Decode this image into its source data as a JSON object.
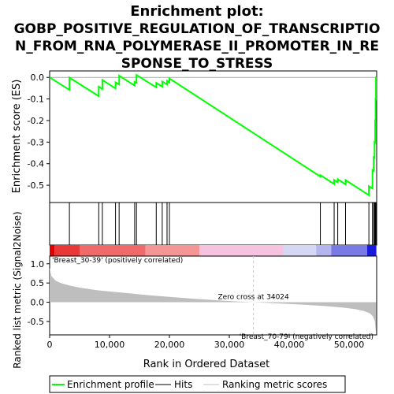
{
  "chart_data": {
    "type": "line",
    "title_lines": [
      "Enrichment plot:",
      "GOBP_POSITIVE_REGULATION_OF_TRANSCRIPTIO",
      "N_FROM_RNA_POLYMERASE_II_PROMOTER_IN_RE",
      "SPONSE_TO_STRESS"
    ],
    "es_ylabel": "Enrichment score (ES)",
    "rank_ylabel": "Ranked list metric (Signal2Noise)",
    "xlabel": "Rank in Ordered Dataset",
    "xlim": [
      0,
      54600
    ],
    "es_ylim": [
      -0.58,
      0.03
    ],
    "rank_ylim": [
      -0.85,
      1.2
    ],
    "x_ticks": [
      0,
      10000,
      20000,
      30000,
      40000,
      50000
    ],
    "x_tick_labels": [
      "0",
      "10,000",
      "20,000",
      "30,000",
      "40,000",
      "50,000"
    ],
    "es_ticks": [
      0.0,
      -0.1,
      -0.2,
      -0.3,
      -0.4,
      -0.5
    ],
    "es_tick_labels": [
      "0.0",
      "-0.1",
      "-0.2",
      "-0.3",
      "-0.4",
      "-0.5"
    ],
    "rank_ticks": [
      1.0,
      0.5,
      0.0,
      -0.5
    ],
    "rank_tick_labels": [
      "1.0",
      "0.5",
      "0.0",
      "-0.5"
    ],
    "hits": [
      3300,
      8200,
      8800,
      11000,
      11600,
      14200,
      14500,
      17800,
      18800,
      19600,
      20000,
      45200,
      47500,
      48100,
      49400,
      53300,
      53900,
      54100,
      54250,
      54350,
      54420,
      54480
    ],
    "es_series": {
      "name": "Enrichment profile",
      "x": [
        0,
        3300,
        3300,
        8200,
        8200,
        8800,
        8800,
        11000,
        11000,
        11600,
        11600,
        14200,
        14200,
        14500,
        14500,
        17800,
        17800,
        18800,
        18800,
        19600,
        19600,
        20000,
        20000,
        45200,
        45200,
        47500,
        47500,
        48100,
        48100,
        49400,
        49400,
        53300,
        53300,
        53900,
        53900,
        54100,
        54100,
        54250,
        54250,
        54350,
        54350,
        54420,
        54420,
        54480,
        54480,
        54550
      ],
      "y": [
        0.0,
        -0.058,
        -0.001,
        -0.087,
        -0.043,
        -0.054,
        -0.012,
        -0.051,
        -0.023,
        -0.033,
        0.008,
        -0.038,
        -0.021,
        -0.026,
        0.011,
        -0.046,
        -0.025,
        -0.043,
        -0.019,
        -0.033,
        -0.016,
        -0.023,
        -0.005,
        -0.46,
        -0.453,
        -0.494,
        -0.475,
        -0.486,
        -0.472,
        -0.496,
        -0.476,
        -0.546,
        -0.504,
        -0.515,
        -0.43,
        -0.433,
        -0.37,
        -0.373,
        -0.3,
        -0.302,
        -0.2,
        -0.201,
        -0.1,
        -0.101,
        0.0,
        0.0
      ]
    },
    "metric_series": {
      "x": [
        0,
        300,
        1000,
        2000,
        3500,
        5000,
        8000,
        12000,
        16000,
        20000,
        25000,
        30000,
        34024,
        38000,
        42000,
        46000,
        49000,
        51000,
        52500,
        53500,
        54000,
        54300,
        54500
      ],
      "y": [
        0.9,
        0.68,
        0.56,
        0.49,
        0.43,
        0.38,
        0.31,
        0.25,
        0.19,
        0.14,
        0.08,
        0.03,
        0.0,
        -0.03,
        -0.06,
        -0.1,
        -0.14,
        -0.18,
        -0.23,
        -0.29,
        -0.37,
        -0.5,
        -0.82
      ]
    },
    "heatmap_segments": [
      {
        "x0": 0,
        "x1": 800,
        "color": "#dd0000"
      },
      {
        "x0": 800,
        "x1": 5000,
        "color": "#e83838"
      },
      {
        "x0": 5000,
        "x1": 16000,
        "color": "#f06a6a"
      },
      {
        "x0": 16000,
        "x1": 25000,
        "color": "#f59595"
      },
      {
        "x0": 25000,
        "x1": 39000,
        "color": "#f5c2e0"
      },
      {
        "x0": 39000,
        "x1": 44500,
        "color": "#d6d6f5"
      },
      {
        "x0": 44500,
        "x1": 47000,
        "color": "#b4b4ee"
      },
      {
        "x0": 47000,
        "x1": 53000,
        "color": "#7a7ae6"
      },
      {
        "x0": 53000,
        "x1": 54550,
        "color": "#1a1adb"
      }
    ],
    "zero_cross_x": 34024,
    "zero_cross_label": "Zero cross at 34024",
    "pos_label": "'Breast_30-39' (positively correlated)",
    "neg_label": "'Breast_70-79' (negatively correlated)",
    "legend": [
      {
        "label": "Enrichment profile",
        "color": "#00ff00"
      },
      {
        "label": "Hits",
        "color": "#000000"
      },
      {
        "label": "Ranking metric scores",
        "color": "#c0c0c0"
      }
    ],
    "colors": {
      "es_line": "#00ff00",
      "hit": "#000000",
      "metric_fill": "#bebebe",
      "pos_label": "#cc0000",
      "neg_label": "#0000cc",
      "zero_line": "#c8c8c8"
    },
    "grid": false,
    "legend_position": "bottom"
  }
}
